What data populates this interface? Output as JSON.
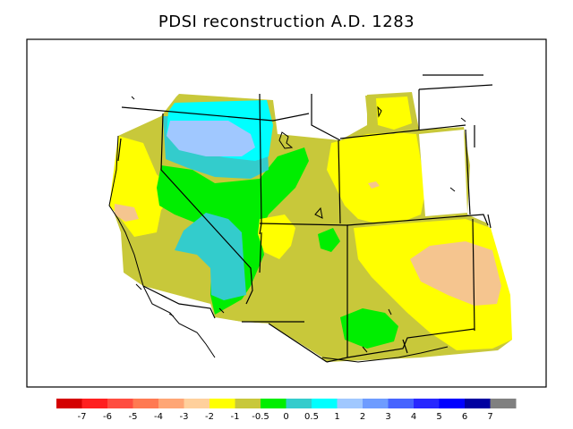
{
  "title": "PDSI reconstruction A.D. 1283",
  "colors": {
    "tan": "#f5c58f",
    "yellow": "#ffff00",
    "olive": "#c8c83a",
    "green": "#00ee00",
    "teal": "#33cccc",
    "cyan": "#00ffff",
    "lightblue": "#a0c8ff",
    "border": "#000000"
  },
  "legend": {
    "colors": [
      "#d40000",
      "#ff1f1f",
      "#ff4d40",
      "#ff7a52",
      "#ffa675",
      "#ffd09c",
      "#ffff00",
      "#c8c83a",
      "#00ee00",
      "#33cccc",
      "#00ffff",
      "#a0c8ff",
      "#6e9cff",
      "#4664ff",
      "#2828ff",
      "#0000ff",
      "#0000a0",
      "#808080"
    ],
    "labels": [
      "-7",
      "-6",
      "-5",
      "-4",
      "-3",
      "-2",
      "-1",
      "-0.5",
      "0",
      "0.5",
      "1",
      "2",
      "3",
      "4",
      "5",
      "6",
      "7"
    ]
  }
}
